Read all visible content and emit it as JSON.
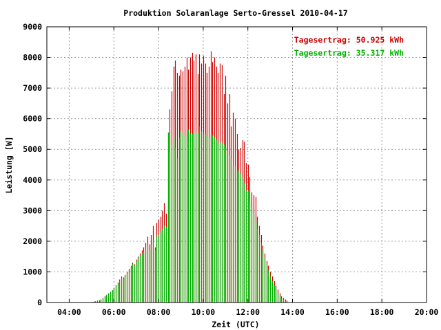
{
  "chart_data": {
    "type": "bar",
    "title": "Produktion Solaranlage Serto-Gressel 2010-04-17",
    "xlabel": "Zeit (UTC)",
    "ylabel": "Leistung [W]",
    "xlim": [
      "03:00",
      "20:00"
    ],
    "ylim": [
      0,
      9000
    ],
    "x_ticks": [
      "04:00",
      "06:00",
      "08:00",
      "10:00",
      "12:00",
      "14:00",
      "16:00",
      "18:00",
      "20:00"
    ],
    "y_ticks": [
      "0",
      "1000",
      "2000",
      "3000",
      "4000",
      "5000",
      "6000",
      "7000",
      "8000",
      "9000"
    ],
    "grid": true,
    "legend_position": "top-right",
    "colors": {
      "series1": "#cc0000",
      "series2": "#00b000"
    },
    "x_interval_minutes": 5,
    "x_start": "05:00",
    "series": [
      {
        "name": "Tagesertrag: 50.925 kWh",
        "values": [
          20,
          30,
          40,
          60,
          80,
          100,
          150,
          200,
          250,
          300,
          350,
          400,
          480,
          560,
          650,
          750,
          850,
          820,
          900,
          1000,
          1100,
          1200,
          1300,
          1250,
          1400,
          1500,
          1600,
          1700,
          1800,
          1950,
          2150,
          1900,
          2200,
          2500,
          1800,
          2600,
          2700,
          2800,
          3000,
          3250,
          2900,
          5550,
          6300,
          6900,
          7700,
          7900,
          7500,
          7400,
          7600,
          7550,
          7700,
          8000,
          7600,
          8000,
          8150,
          7900,
          8100,
          7450,
          8100,
          7800,
          8050,
          7800,
          7500,
          7700,
          8200,
          7850,
          8000,
          7700,
          7500,
          7800,
          7750,
          6800,
          7400,
          6500,
          6800,
          5750,
          6200,
          6000,
          5500,
          5000,
          5050,
          5300,
          5250,
          4550,
          4500,
          4100,
          3600,
          3500,
          3450,
          2800,
          2500,
          2200,
          1850,
          1600,
          1350,
          1200,
          1000,
          850,
          700,
          550,
          420,
          300,
          200,
          150,
          100,
          60
        ]
      },
      {
        "name": "Tagesertrag: 35.317 kWh",
        "values": [
          20,
          30,
          40,
          60,
          80,
          100,
          150,
          200,
          250,
          300,
          350,
          400,
          480,
          550,
          630,
          720,
          800,
          780,
          850,
          950,
          1050,
          1150,
          1250,
          1200,
          1350,
          1450,
          1550,
          1600,
          1650,
          1750,
          1850,
          1700,
          1900,
          2050,
          1700,
          2150,
          2200,
          2300,
          2400,
          2500,
          2450,
          5550,
          4900,
          5150,
          5400,
          5050,
          4700,
          5400,
          5600,
          5550,
          5450,
          5300,
          5650,
          5500,
          5500,
          5500,
          5550,
          5500,
          5750,
          5600,
          5550,
          5500,
          5450,
          5400,
          5500,
          5450,
          5400,
          5300,
          5200,
          5250,
          5200,
          5150,
          5050,
          4950,
          4800,
          4700,
          4450,
          4450,
          4300,
          4300,
          4200,
          4050,
          3900,
          3650,
          3650,
          3300,
          3100,
          2900,
          2650,
          2400,
          2200,
          1950,
          1700,
          1450,
          1250,
          1050,
          850,
          700,
          550,
          400,
          300,
          200,
          150,
          100,
          60,
          30
        ]
      }
    ]
  }
}
